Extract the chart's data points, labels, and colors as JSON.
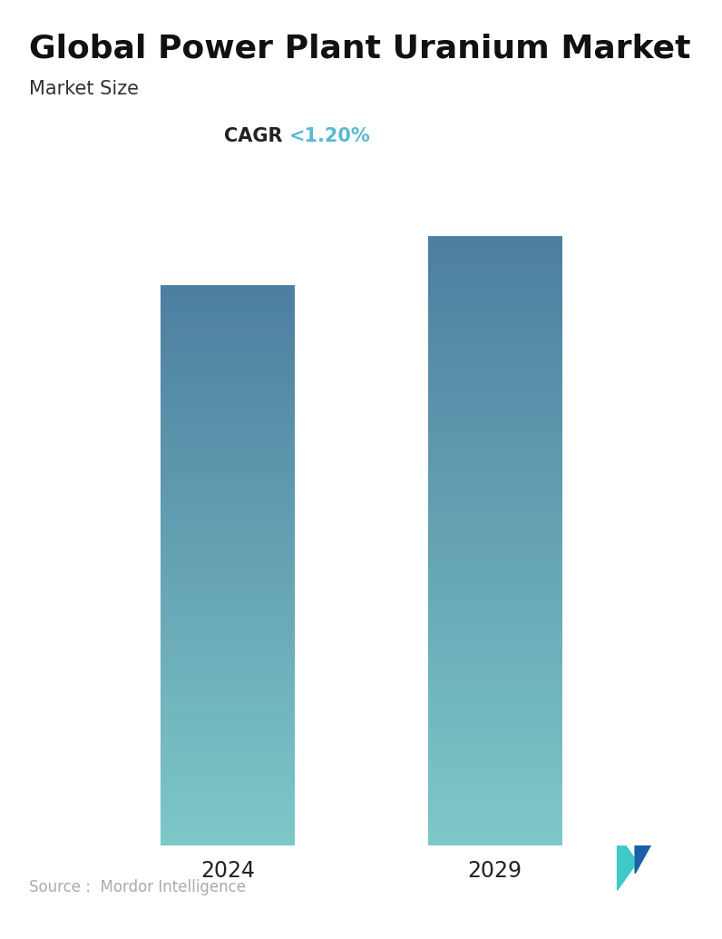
{
  "title": "Global Power Plant Uranium Market",
  "subtitle": "Market Size",
  "cagr_label": "CAGR ",
  "cagr_value": "<1.20%",
  "categories": [
    "2024",
    "2029"
  ],
  "values": [
    0.92,
    1.0
  ],
  "bar_color_top": "#4d7fa0",
  "bar_color_bottom": "#7ec8c8",
  "title_fontsize": 26,
  "subtitle_fontsize": 15,
  "cagr_fontsize": 15,
  "cagr_value_color": "#5bb8d4",
  "cagr_label_color": "#222222",
  "tick_fontsize": 17,
  "source_text": "Source :  Mordor Intelligence",
  "source_fontsize": 12,
  "bg_color": "#ffffff",
  "bar_width": 0.22,
  "ylim": [
    0,
    1.08
  ],
  "positions": [
    0.28,
    0.72
  ]
}
